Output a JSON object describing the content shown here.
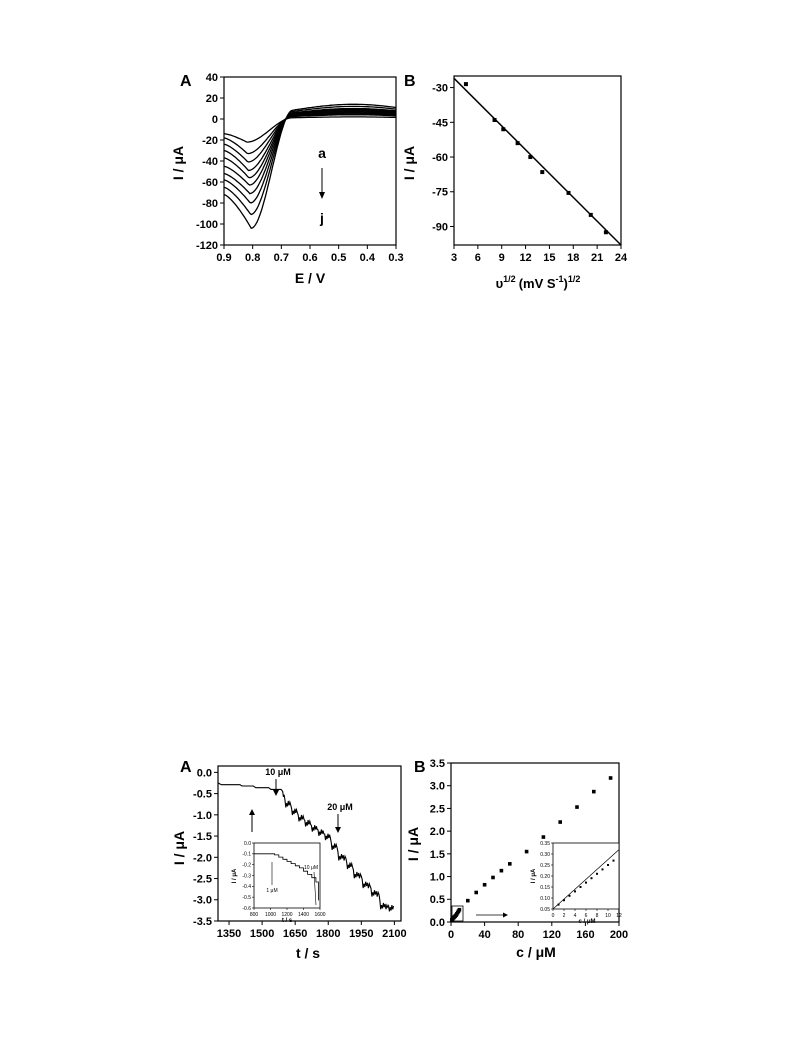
{
  "chart_data": [
    {
      "panel_label": "A",
      "type": "line",
      "xlabel": "E / V",
      "ylabel": "I / μA",
      "xlim": [
        0.9,
        0.3
      ],
      "ylim": [
        -120,
        40
      ],
      "xticks": [
        "0.9",
        "0.8",
        "0.7",
        "0.6",
        "0.5",
        "0.4",
        "0.3"
      ],
      "yticks": [
        "40",
        "20",
        "0",
        "-20",
        "-40",
        "-60",
        "-80",
        "-100",
        "-120"
      ],
      "annotations": [
        "a",
        "j"
      ],
      "series": [
        {
          "peak_current": -22,
          "start_current": -14,
          "plateau": 2
        },
        {
          "peak_current": -33,
          "start_current": -18,
          "plateau": 4
        },
        {
          "peak_current": -41,
          "start_current": -24,
          "plateau": 5
        },
        {
          "peak_current": -49,
          "start_current": -30,
          "plateau": 6
        },
        {
          "peak_current": -56,
          "start_current": -37,
          "plateau": 7
        },
        {
          "peak_current": -63,
          "start_current": -45,
          "plateau": 8
        },
        {
          "peak_current": -71,
          "start_current": -52,
          "plateau": 9
        },
        {
          "peak_current": -80,
          "start_current": -58,
          "plateau": 10
        },
        {
          "peak_current": -91,
          "start_current": -65,
          "plateau": 12
        },
        {
          "peak_current": -104,
          "start_current": -72,
          "plateau": 14
        }
      ]
    },
    {
      "panel_label": "B",
      "type": "scatter",
      "xlabel_base": "υ",
      "xlabel_sup1": "1/2",
      "xlabel_mid": "(mV S",
      "xlabel_sup2": "-1",
      "xlabel_end": ")",
      "xlabel_sup3": "1/2",
      "ylabel": "I / μA",
      "xlim": [
        3,
        24
      ],
      "ylim": [
        -98,
        -25
      ],
      "xticks": [
        "3",
        "6",
        "9",
        "12",
        "15",
        "18",
        "21",
        "24"
      ],
      "yticks": [
        "-30",
        "-45",
        "-60",
        "-75",
        "-90"
      ],
      "points": [
        {
          "x": 4.5,
          "y": -28.5
        },
        {
          "x": 8.1,
          "y": -44
        },
        {
          "x": 9.2,
          "y": -48
        },
        {
          "x": 11,
          "y": -54
        },
        {
          "x": 12.6,
          "y": -60
        },
        {
          "x": 14.1,
          "y": -66.5
        },
        {
          "x": 17.4,
          "y": -75.5
        },
        {
          "x": 20.2,
          "y": -85
        },
        {
          "x": 22.1,
          "y": -92.5
        }
      ],
      "fit": {
        "x": [
          3,
          24
        ],
        "y": [
          -26,
          -98
        ]
      }
    },
    {
      "panel_label": "A",
      "type": "line",
      "xlabel": "t / s",
      "ylabel": "I / μA",
      "xlim": [
        1300,
        2130
      ],
      "ylim": [
        -3.5,
        0.15
      ],
      "xticks": [
        "1350",
        "1500",
        "1650",
        "1800",
        "1950",
        "2100"
      ],
      "yticks": [
        "0.0",
        "-0.5",
        "-1.0",
        "-1.5",
        "-2.0",
        "-2.5",
        "-3.0",
        "-3.5"
      ],
      "annotations": [
        "10 μM",
        "20 μM"
      ],
      "series": [
        {
          "x": [
            1300,
            1400,
            1460,
            1530,
            1590,
            1600,
            1630,
            1660,
            1690,
            1720,
            1750,
            1780,
            1810,
            1840,
            1880,
            1910,
            1950,
            1990,
            2030,
            2070,
            2100
          ],
          "y": [
            -0.25,
            -0.29,
            -0.32,
            -0.36,
            -0.4,
            -0.5,
            -0.75,
            -0.93,
            -1.08,
            -1.2,
            -1.32,
            -1.42,
            -1.52,
            -1.75,
            -2.0,
            -2.2,
            -2.42,
            -2.65,
            -2.85,
            -3.15,
            -3.2
          ]
        }
      ],
      "inset": {
        "xlabel": "t / s",
        "ylabel": "I / μA",
        "xlim": [
          800,
          1600
        ],
        "ylim": [
          -0.6,
          0.0
        ],
        "xticks": [
          "800",
          "1000",
          "1200",
          "1400",
          "1600"
        ],
        "yticks": [
          "0.0",
          "-0.1",
          "-0.2",
          "-0.3",
          "-0.4",
          "-0.5",
          "-0.6"
        ],
        "annotations": [
          "1 μM",
          "10 μM"
        ],
        "series": [
          {
            "x": [
              800,
              900,
              1000,
              1050,
              1100,
              1150,
              1200,
              1250,
              1300,
              1350,
              1400,
              1450,
              1500,
              1550,
              1580
            ],
            "y": [
              -0.1,
              -0.1,
              -0.1,
              -0.11,
              -0.13,
              -0.15,
              -0.17,
              -0.19,
              -0.21,
              -0.23,
              -0.26,
              -0.29,
              -0.32,
              -0.36,
              -0.53
            ]
          }
        ]
      }
    },
    {
      "panel_label": "B",
      "type": "scatter",
      "xlabel": "c / μM",
      "ylabel": "I / μA",
      "xlim": [
        0,
        200
      ],
      "ylim": [
        0,
        3.5
      ],
      "xticks": [
        "0",
        "40",
        "80",
        "120",
        "160",
        "200"
      ],
      "yticks": [
        "0.0",
        "0.5",
        "1.0",
        "1.5",
        "2.0",
        "2.5",
        "3.0",
        "3.5"
      ],
      "points": [
        {
          "x": 1,
          "y": 0.05
        },
        {
          "x": 2,
          "y": 0.07
        },
        {
          "x": 3,
          "y": 0.09
        },
        {
          "x": 4,
          "y": 0.11
        },
        {
          "x": 5,
          "y": 0.13
        },
        {
          "x": 6,
          "y": 0.15
        },
        {
          "x": 7,
          "y": 0.18
        },
        {
          "x": 8,
          "y": 0.21
        },
        {
          "x": 9,
          "y": 0.24
        },
        {
          "x": 10,
          "y": 0.27
        },
        {
          "x": 20,
          "y": 0.47
        },
        {
          "x": 30,
          "y": 0.65
        },
        {
          "x": 40,
          "y": 0.82
        },
        {
          "x": 50,
          "y": 0.98
        },
        {
          "x": 60,
          "y": 1.13
        },
        {
          "x": 70,
          "y": 1.28
        },
        {
          "x": 90,
          "y": 1.55
        },
        {
          "x": 110,
          "y": 1.87
        },
        {
          "x": 130,
          "y": 2.2
        },
        {
          "x": 150,
          "y": 2.53
        },
        {
          "x": 170,
          "y": 2.87
        },
        {
          "x": 190,
          "y": 3.17
        }
      ],
      "inset": {
        "xlabel": "c / μM",
        "ylabel": "I / μA",
        "xlim": [
          0,
          12
        ],
        "ylim": [
          0.05,
          0.35
        ],
        "xticks": [
          "0",
          "2",
          "4",
          "6",
          "8",
          "10",
          "12"
        ],
        "yticks": [
          "0.35",
          "0.30",
          "0.25",
          "0.20",
          "0.15",
          "0.10",
          "0.05"
        ],
        "points": [
          {
            "x": 1,
            "y": 0.07
          },
          {
            "x": 2,
            "y": 0.09
          },
          {
            "x": 3,
            "y": 0.11
          },
          {
            "x": 4,
            "y": 0.13
          },
          {
            "x": 5,
            "y": 0.15
          },
          {
            "x": 6,
            "y": 0.17
          },
          {
            "x": 7,
            "y": 0.19
          },
          {
            "x": 8,
            "y": 0.21
          },
          {
            "x": 9,
            "y": 0.23
          },
          {
            "x": 10,
            "y": 0.25
          },
          {
            "x": 11,
            "y": 0.27
          }
        ],
        "fit": {
          "x": [
            0,
            12
          ],
          "y": [
            0.05,
            0.32
          ]
        }
      }
    }
  ]
}
